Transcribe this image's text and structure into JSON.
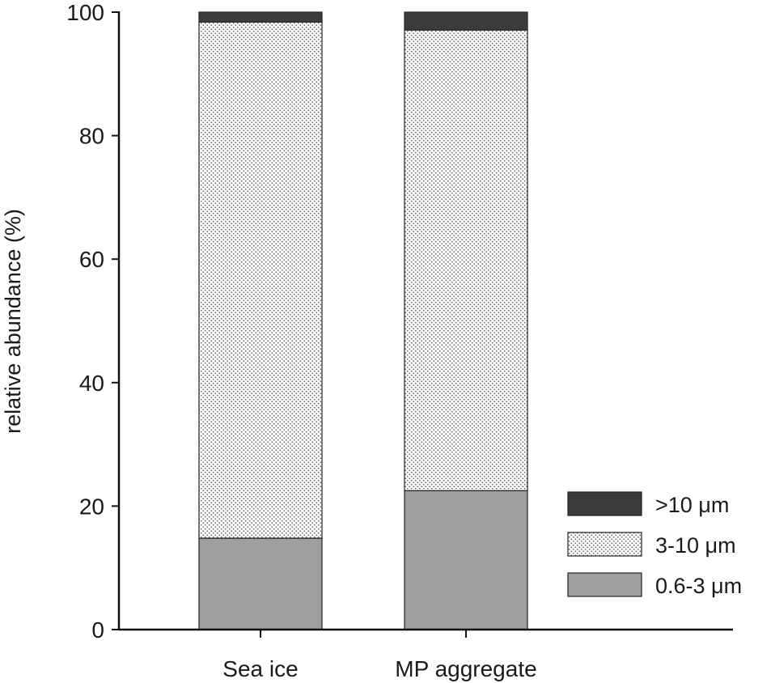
{
  "chart_data": {
    "type": "bar",
    "stacked": true,
    "categories": [
      "Sea ice",
      "MP aggregate"
    ],
    "series": [
      {
        "name": "0.6-3 μm",
        "values": [
          14.8,
          22.5
        ],
        "fill": "#9e9e9e",
        "pattern": "solid"
      },
      {
        "name": "3-10 μm",
        "values": [
          83.6,
          74.6
        ],
        "fill": "#ffffff",
        "pattern": "dotted-crosshatch"
      },
      {
        "name": ">10 μm",
        "values": [
          1.6,
          2.9
        ],
        "fill": "#3c3c3c",
        "pattern": "solid"
      }
    ],
    "ylabel": "relative abundance (%)",
    "xlabel": "",
    "ylim": [
      0,
      100
    ],
    "yticks": [
      0,
      20,
      40,
      60,
      80,
      100
    ],
    "legend_order": [
      ">10 μm",
      "3-10 μm",
      "0.6-3 μm"
    ],
    "legend_position": "bottom-right",
    "grid": false
  }
}
